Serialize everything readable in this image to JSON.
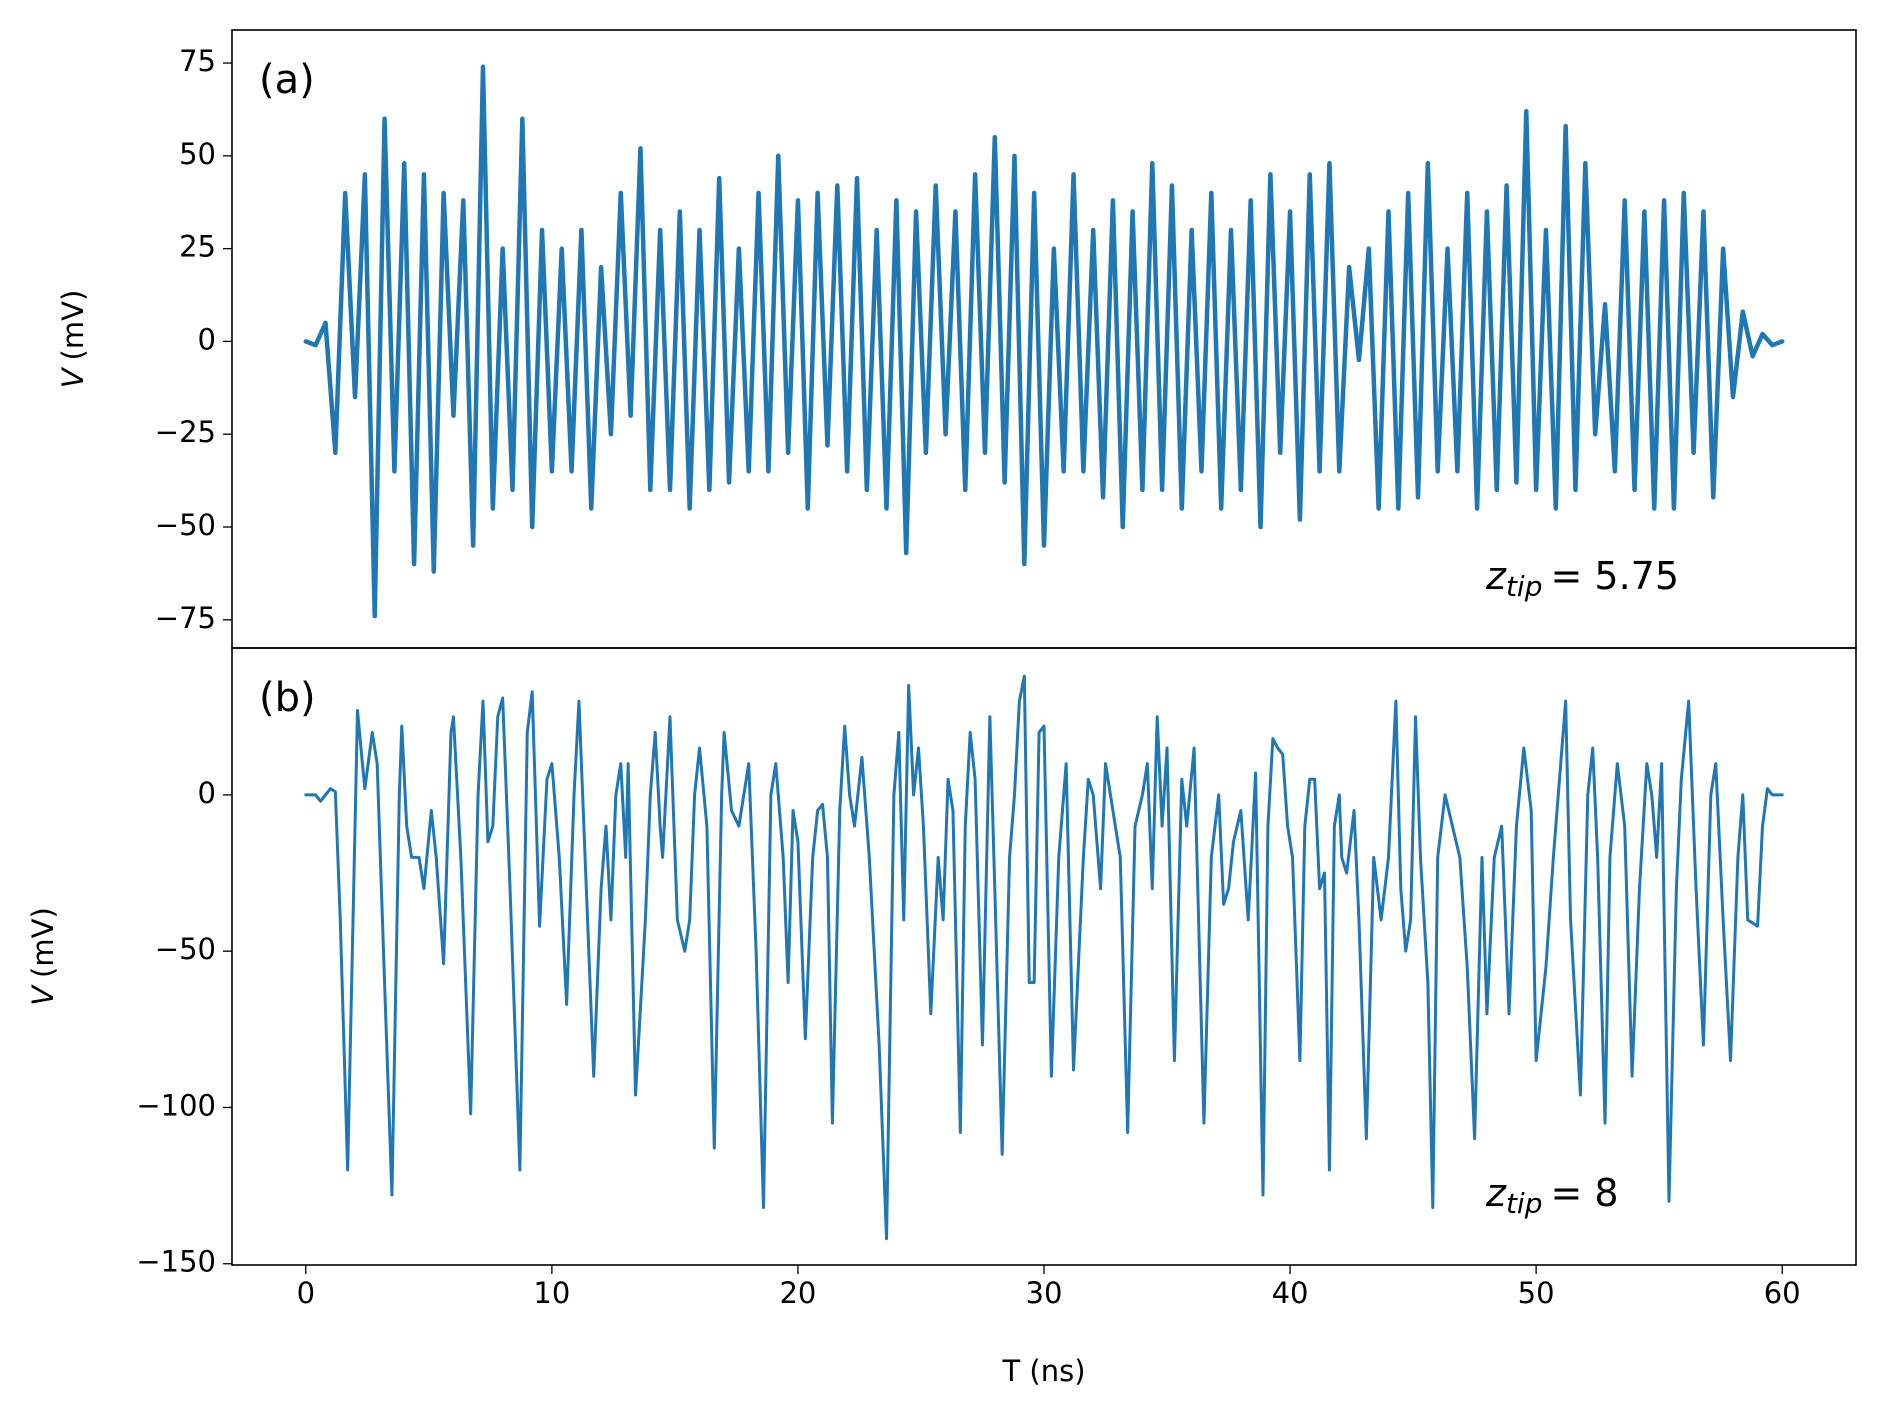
{
  "chart_data": [
    {
      "type": "line",
      "panel_label": "(a)",
      "ylabel": {
        "symbol": "V",
        "unit": "(mV)"
      },
      "annotation": {
        "symbol": "z",
        "subscript": "tip",
        "text": "= 5.75"
      },
      "color": "#1f77b4",
      "xlim": [
        -3,
        63
      ],
      "ylim": [
        -82.6,
        83.9
      ],
      "yticks": [
        {
          "value": 75,
          "label": "75"
        },
        {
          "value": 50,
          "label": "50"
        },
        {
          "value": 25,
          "label": "25"
        },
        {
          "value": 0,
          "label": "0"
        },
        {
          "value": -25,
          "label": "−25"
        },
        {
          "value": -50,
          "label": "−50"
        },
        {
          "value": -75,
          "label": "−75"
        }
      ],
      "x": [
        0,
        0.4,
        0.8,
        1.2,
        1.6,
        2,
        2.4,
        2.8,
        3.2,
        3.6,
        4,
        4.4,
        4.8,
        5.2,
        5.6,
        6,
        6.4,
        6.8,
        7.2,
        7.6,
        8,
        8.4,
        8.8,
        9.2,
        9.6,
        10,
        10.4,
        10.8,
        11.2,
        11.6,
        12,
        12.4,
        12.8,
        13.2,
        13.6,
        14,
        14.4,
        14.8,
        15.2,
        15.6,
        16,
        16.4,
        16.8,
        17.2,
        17.6,
        18,
        18.4,
        18.8,
        19.2,
        19.6,
        20,
        20.4,
        20.8,
        21.2,
        21.6,
        22,
        22.4,
        22.8,
        23.2,
        23.6,
        24,
        24.4,
        24.8,
        25.2,
        25.6,
        26,
        26.4,
        26.8,
        27.2,
        27.6,
        28,
        28.4,
        28.8,
        29.2,
        29.6,
        30,
        30.4,
        30.8,
        31.2,
        31.6,
        32,
        32.4,
        32.8,
        33.2,
        33.6,
        34,
        34.4,
        34.8,
        35.2,
        35.6,
        36,
        36.4,
        36.8,
        37.2,
        37.6,
        38,
        38.4,
        38.8,
        39.2,
        39.6,
        40,
        40.4,
        40.8,
        41.2,
        41.6,
        42,
        42.4,
        42.8,
        43.2,
        43.6,
        44,
        44.4,
        44.8,
        45.2,
        45.6,
        46,
        46.4,
        46.8,
        47.2,
        47.6,
        48,
        48.4,
        48.8,
        49.2,
        49.6,
        50,
        50.4,
        50.8,
        51.2,
        51.6,
        52,
        52.4,
        52.8,
        53.2,
        53.6,
        54,
        54.4,
        54.8,
        55.2,
        55.6,
        56,
        56.4,
        56.8,
        57.2,
        57.6,
        58,
        58.4,
        58.8,
        59.2,
        59.6,
        60
      ],
      "values": [
        0,
        -1,
        5,
        -30,
        40,
        -15,
        45,
        -74,
        60,
        -35,
        48,
        -60,
        45,
        -62,
        40,
        -20,
        38,
        -55,
        74,
        -45,
        25,
        -40,
        60,
        -50,
        30,
        -35,
        25,
        -35,
        30,
        -45,
        20,
        -25,
        40,
        -20,
        52,
        -40,
        30,
        -40,
        35,
        -45,
        30,
        -40,
        44,
        -38,
        25,
        -35,
        40,
        -35,
        50,
        -30,
        38,
        -45,
        40,
        -28,
        42,
        -35,
        44,
        -40,
        30,
        -45,
        38,
        -57,
        35,
        -30,
        42,
        -25,
        35,
        -40,
        45,
        -30,
        55,
        -38,
        50,
        -60,
        40,
        -55,
        25,
        -35,
        45,
        -35,
        30,
        -42,
        38,
        -50,
        35,
        -40,
        48,
        -40,
        42,
        -45,
        30,
        -35,
        40,
        -45,
        30,
        -40,
        38,
        -50,
        45,
        -30,
        35,
        -48,
        45,
        -35,
        48,
        -35,
        20,
        -5,
        25,
        -45,
        35,
        -45,
        40,
        -42,
        48,
        -35,
        25,
        -35,
        40,
        -45,
        35,
        -40,
        42,
        -38,
        62,
        -40,
        30,
        -45,
        58,
        -40,
        48,
        -25,
        10,
        -35,
        38,
        -40,
        35,
        -45,
        38,
        -45,
        40,
        -30,
        35,
        -42,
        25,
        -15,
        8,
        -4,
        2,
        -1,
        0
      ]
    },
    {
      "type": "line",
      "panel_label": "(b)",
      "ylabel": {
        "symbol": "V",
        "unit": "(mV)"
      },
      "xlabel": "T (ns)",
      "annotation": {
        "symbol": "z",
        "subscript": "tip",
        "text": "= 8"
      },
      "color": "#1f77b4",
      "xlim": [
        -3,
        63
      ],
      "ylim": [
        -150.4,
        47
      ],
      "xticks": [
        0,
        10,
        20,
        30,
        40,
        50,
        60
      ],
      "yticks": [
        {
          "value": 0,
          "label": "0"
        },
        {
          "value": -50,
          "label": "−50"
        },
        {
          "value": -100,
          "label": "−100"
        },
        {
          "value": -150,
          "label": "−150"
        }
      ],
      "x": [
        0,
        0.4,
        0.6,
        0.8,
        1.0,
        1.2,
        1.4,
        1.7,
        2.0,
        2.1,
        2.3,
        2.4,
        2.7,
        2.9,
        3.2,
        3.5,
        3.8,
        3.9,
        4.1,
        4.3,
        4.6,
        4.8,
        5.1,
        5.3,
        5.6,
        5.9,
        6.0,
        6.3,
        6.7,
        7.0,
        7.2,
        7.4,
        7.6,
        7.8,
        8.0,
        8.3,
        8.7,
        9.0,
        9.2,
        9.5,
        9.8,
        10.0,
        10.3,
        10.6,
        10.9,
        11.1,
        11.4,
        11.7,
        12.0,
        12.2,
        12.4,
        12.6,
        12.8,
        13.0,
        13.1,
        13.4,
        13.8,
        14.0,
        14.2,
        14.4,
        14.5,
        14.8,
        15.1,
        15.4,
        15.6,
        15.8,
        16.0,
        16.3,
        16.6,
        16.9,
        17.0,
        17.3,
        17.6,
        17.9,
        18.0,
        18.3,
        18.6,
        18.9,
        19.1,
        19.4,
        19.6,
        19.8,
        20.0,
        20.3,
        20.6,
        20.8,
        21.0,
        21.2,
        21.4,
        21.7,
        21.9,
        22.1,
        22.3,
        22.6,
        22.9,
        23.3,
        23.6,
        23.9,
        24.1,
        24.3,
        24.5,
        24.7,
        24.9,
        25.1,
        25.4,
        25.7,
        25.9,
        26.1,
        26.3,
        26.6,
        26.8,
        27.0,
        27.2,
        27.5,
        27.8,
        28.0,
        28.3,
        28.6,
        28.8,
        29.0,
        29.2,
        29.4,
        29.6,
        29.8,
        30.0,
        30.3,
        30.6,
        30.9,
        31.2,
        31.6,
        31.8,
        32.0,
        32.3,
        32.5,
        32.8,
        33.1,
        33.4,
        33.7,
        34.0,
        34.2,
        34.4,
        34.6,
        34.8,
        35.0,
        35.3,
        35.6,
        35.8,
        36.1,
        36.5,
        36.8,
        37.1,
        37.3,
        37.5,
        37.7,
        38.0,
        38.3,
        38.6,
        38.9,
        39.1,
        39.3,
        39.5,
        39.7,
        39.9,
        40.1,
        40.4,
        40.6,
        40.8,
        41.0,
        41.2,
        41.4,
        41.6,
        41.8,
        42.0,
        42.1,
        42.3,
        42.6,
        42.8,
        43.1,
        43.4,
        43.7,
        44.0,
        44.3,
        44.5,
        44.7,
        44.9,
        45.1,
        45.3,
        45.6,
        45.8,
        46.0,
        46.3,
        46.6,
        46.9,
        47.2,
        47.5,
        47.8,
        48.0,
        48.3,
        48.6,
        48.9,
        49.2,
        49.5,
        49.8,
        50.0,
        50.4,
        50.7,
        50.9,
        51.2,
        51.4,
        51.8,
        52.1,
        52.3,
        52.5,
        52.8,
        53.0,
        53.3,
        53.6,
        53.9,
        54.2,
        54.5,
        54.7,
        54.9,
        55.1,
        55.4,
        55.7,
        55.9,
        56.2,
        56.5,
        56.8,
        57.1,
        57.3,
        57.6,
        57.9,
        58.2,
        58.4,
        58.6,
        59.0,
        59.2,
        59.4,
        59.6,
        60
      ],
      "values": [
        0,
        0,
        -2,
        0,
        2,
        1,
        -40,
        -120,
        -10,
        27,
        10,
        2,
        20,
        10,
        -60,
        -128,
        0,
        22,
        -10,
        -20,
        -20,
        -30,
        -5,
        -20,
        -54,
        20,
        25,
        -20,
        -102,
        0,
        30,
        -15,
        -10,
        25,
        31,
        -30,
        -120,
        20,
        33,
        -42,
        5,
        10,
        -20,
        -67,
        0,
        30,
        -30,
        -90,
        -30,
        -10,
        -40,
        0,
        10,
        -20,
        10,
        -96,
        -40,
        0,
        20,
        -10,
        -20,
        25,
        -40,
        -50,
        -40,
        0,
        15,
        -10,
        -113,
        0,
        20,
        -5,
        -10,
        5,
        10,
        -50,
        -132,
        0,
        10,
        -20,
        -60,
        -5,
        -15,
        -78,
        -20,
        -5,
        -3,
        -20,
        -105,
        -5,
        22,
        0,
        -10,
        12,
        -20,
        -80,
        -142,
        0,
        20,
        -40,
        35,
        0,
        15,
        -10,
        -70,
        -20,
        -40,
        5,
        -5,
        -108,
        -10,
        20,
        5,
        -80,
        25,
        -30,
        -115,
        -20,
        0,
        30,
        38,
        -60,
        -60,
        20,
        22,
        -90,
        -20,
        10,
        -88,
        -20,
        5,
        0,
        -30,
        10,
        -5,
        -20,
        -108,
        -10,
        0,
        10,
        -30,
        25,
        -10,
        15,
        -85,
        5,
        -10,
        15,
        -105,
        -20,
        0,
        -35,
        -30,
        -15,
        -5,
        -40,
        7,
        -128,
        -10,
        18,
        15,
        13,
        -10,
        -20,
        -85,
        -10,
        5,
        5,
        -30,
        -25,
        -120,
        -10,
        0,
        -20,
        -25,
        -5,
        -40,
        -110,
        -20,
        -40,
        -20,
        30,
        -30,
        -50,
        -40,
        25,
        -20,
        -60,
        -132,
        -20,
        0,
        -10,
        -20,
        -55,
        -110,
        -20,
        -70,
        -20,
        -10,
        -70,
        -10,
        15,
        -5,
        -85,
        -55,
        -20,
        0,
        30,
        -40,
        -96,
        0,
        15,
        -20,
        -105,
        -20,
        10,
        -10,
        -90,
        -30,
        10,
        0,
        -20,
        10,
        -130,
        -30,
        5,
        30,
        -30,
        -80,
        0,
        10,
        -40,
        -85,
        -20,
        0,
        -40,
        -42,
        -10,
        2,
        0,
        0
      ]
    }
  ]
}
